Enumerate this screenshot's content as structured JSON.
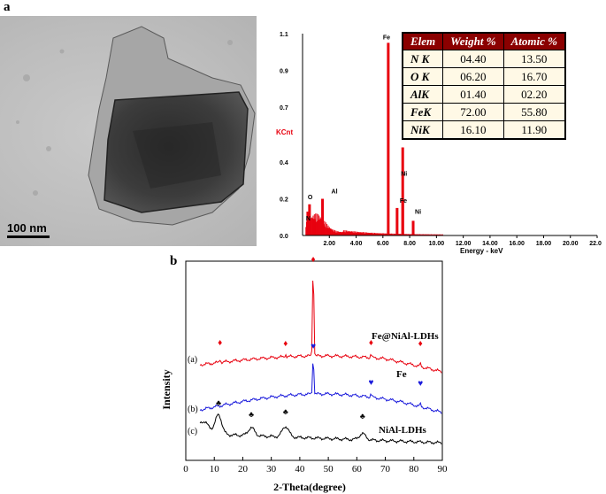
{
  "panel_a_label": "a",
  "panel_b_label": "b",
  "tem": {
    "scale_label": "100 nm"
  },
  "chart_data": [
    {
      "type": "bar",
      "ylabel": "KCnt",
      "xlabel": "Energy - keV",
      "ylim": [
        0,
        1.1
      ],
      "xlim": [
        0,
        22
      ],
      "y_ticks": [
        "0.0",
        "0.2",
        "0.4",
        "0.7",
        "0.9",
        "1.1"
      ],
      "y_tick_values": [
        0,
        0.2,
        0.4,
        0.7,
        0.9,
        1.1
      ],
      "x_ticks": [
        "2.00",
        "4.00",
        "6.00",
        "8.00",
        "10.00",
        "12.00",
        "14.00",
        "16.00",
        "18.00",
        "20.00",
        "22.00"
      ],
      "x_tick_values": [
        2,
        4,
        6,
        8,
        10,
        12,
        14,
        16,
        18,
        20,
        22
      ],
      "peaks": [
        {
          "label": "N",
          "x": 0.39,
          "y": 0.13
        },
        {
          "label": "O",
          "x": 0.52,
          "y": 0.17
        },
        {
          "label": "Al",
          "x": 1.49,
          "y": 0.2
        },
        {
          "label": "Fe",
          "x": 6.4,
          "y": 1.05
        },
        {
          "label": "Fe",
          "x": 7.06,
          "y": 0.15
        },
        {
          "label": "Ni",
          "x": 7.48,
          "y": 0.19
        },
        {
          "label": "Ni",
          "x": 8.26,
          "y": 0.08
        }
      ],
      "extra_lines": [
        {
          "x": 7.48,
          "y": 0.48
        },
        {
          "x": 0.85,
          "y": 0.09
        }
      ],
      "table": {
        "headers": [
          "Elem",
          "Weight %",
          "Atomic %"
        ],
        "rows": [
          [
            "N K",
            "04.40",
            "13.50"
          ],
          [
            "O K",
            "06.20",
            "16.70"
          ],
          [
            "AlK",
            "01.40",
            "02.20"
          ],
          [
            "FeK",
            "72.00",
            "55.80"
          ],
          [
            "NiK",
            "16.10",
            "11.90"
          ]
        ]
      },
      "colors": {
        "spectrum": "#e8000e",
        "axis_label": "#e8000e"
      }
    },
    {
      "type": "line",
      "xlabel": "2-Theta(degree)",
      "ylabel": "Intensity",
      "xlim": [
        0,
        90
      ],
      "x_ticks": [
        0,
        10,
        20,
        30,
        40,
        50,
        60,
        70,
        80,
        90
      ],
      "series": [
        {
          "name": "Fe@NiAl-LDHs",
          "tag": "(a)",
          "color": "#e8000e",
          "marker": "♦",
          "peaks_2theta": [
            12,
            35,
            44.7,
            65,
            82.3
          ]
        },
        {
          "name": "Fe",
          "tag": "(b)",
          "color": "#1a1adb",
          "marker": "♥",
          "peaks_2theta": [
            44.7,
            65,
            82.3
          ]
        },
        {
          "name": "NiAl-LDHs",
          "tag": "(c)",
          "color": "#000000",
          "marker": "♣",
          "peaks_2theta": [
            11.5,
            23,
            35,
            62
          ]
        }
      ]
    }
  ]
}
